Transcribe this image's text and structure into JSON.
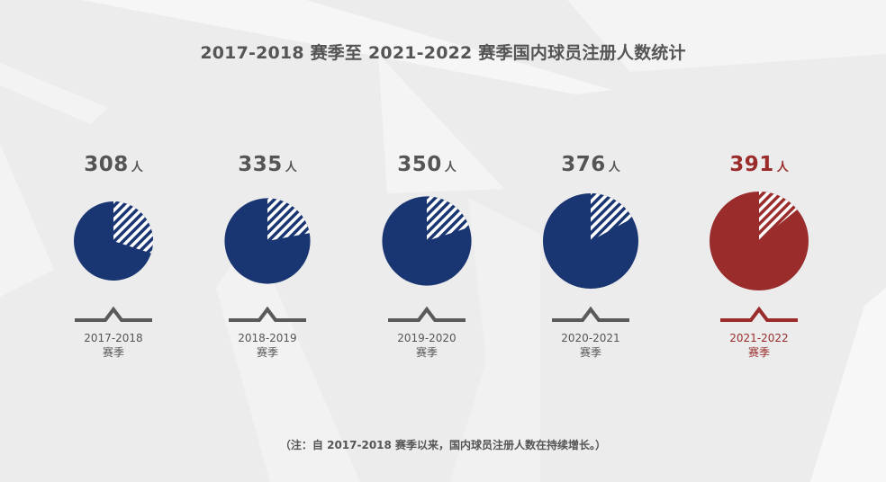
{
  "title": "2017-2018 赛季至 2021-2022 赛季国内球员注册人数统计",
  "unit": "人",
  "note": "（注：自 2017-2018 赛季以来，国内球员注册人数在持续增长。）",
  "colors": {
    "normal_pie": "#1a3672",
    "highlight_pie": "#9a2c2c",
    "normal_text": "#555555",
    "highlight_text": "#9a2c2c",
    "marker_normal": "#5a5a5a",
    "marker_highlight": "#9a2c2c"
  },
  "chart_data": {
    "type": "pie",
    "title": "2017-2018 赛季至 2021-2022 赛季国内球员注册人数统计",
    "categories": [
      "2017-2018",
      "2018-2019",
      "2019-2020",
      "2020-2021",
      "2021-2022"
    ],
    "category_suffix": "赛季",
    "values": [
      308,
      335,
      350,
      376,
      391
    ],
    "unit": "人",
    "highlight_index": 4,
    "hatched_slice_fraction": [
      0.3,
      0.22,
      0.2,
      0.17,
      0.14
    ]
  }
}
